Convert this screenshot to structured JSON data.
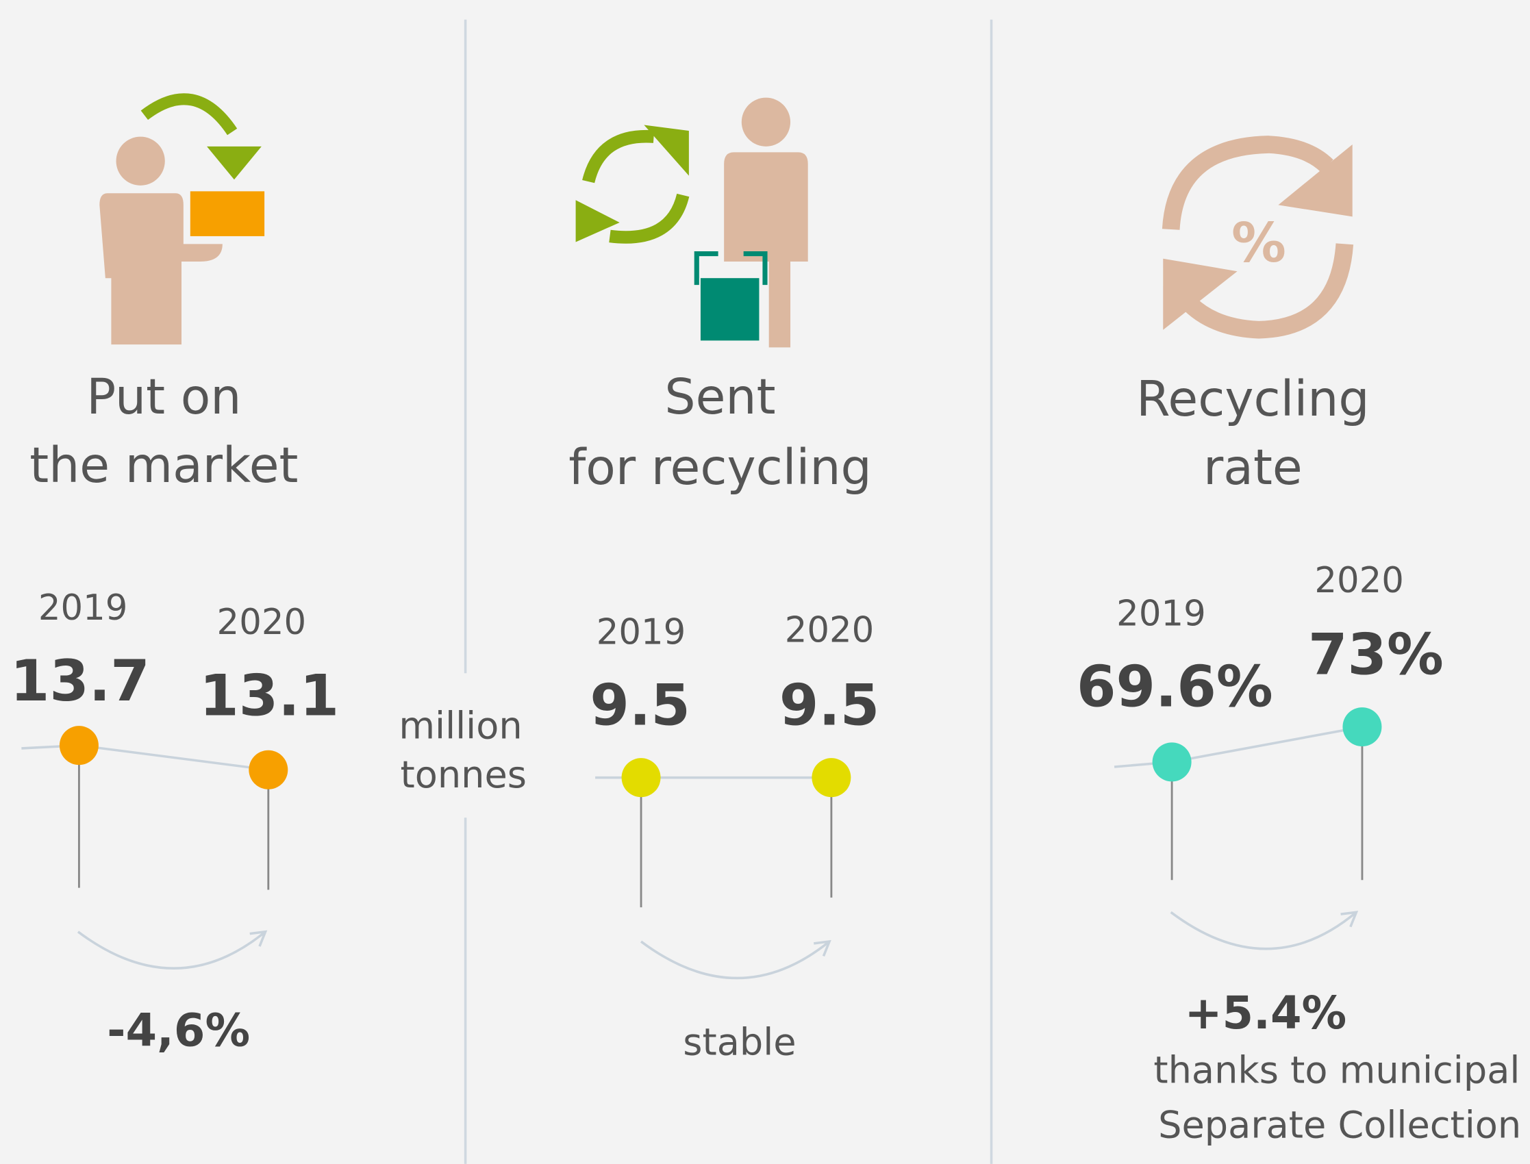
{
  "unit": [
    "million",
    "tonnes"
  ],
  "panels": [
    {
      "title": [
        "Put on",
        "the market"
      ],
      "years": [
        "2019",
        "2020"
      ],
      "values": [
        "13.7",
        "13.1"
      ],
      "change": "-4,6%"
    },
    {
      "title": [
        "Sent",
        "for recycling"
      ],
      "years": [
        "2019",
        "2020"
      ],
      "values": [
        "9.5",
        "9.5"
      ],
      "change": "stable"
    },
    {
      "title": [
        "Recycling",
        "rate"
      ],
      "years": [
        "2019",
        "2020"
      ],
      "values": [
        "69.6%",
        "73%"
      ],
      "change": "+5.4%",
      "note": [
        "thanks to municipal",
        "Separate Collection"
      ]
    }
  ]
}
